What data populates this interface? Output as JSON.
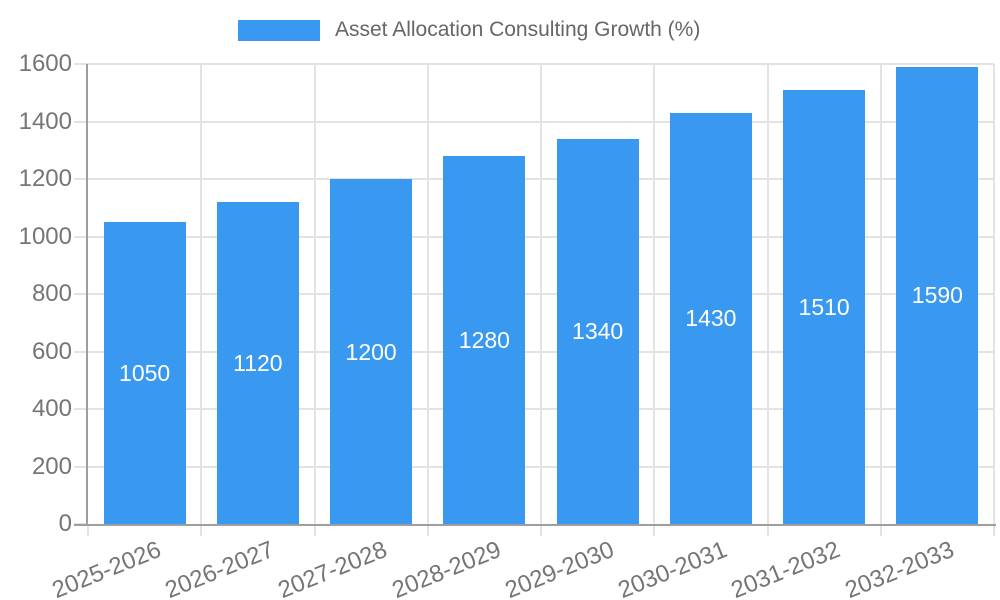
{
  "legend": {
    "label": "Asset Allocation Consulting Growth (%)"
  },
  "chart_data": {
    "type": "bar",
    "title": "Asset Allocation Consulting Growth (%)",
    "categories": [
      "2025-2026",
      "2026-2027",
      "2027-2028",
      "2028-2029",
      "2029-2030",
      "2030-2031",
      "2031-2032",
      "2032-2033"
    ],
    "values": [
      1050,
      1120,
      1200,
      1280,
      1340,
      1430,
      1510,
      1590
    ],
    "xlabel": "",
    "ylabel": "",
    "ylim": [
      0,
      1600
    ],
    "yticks": [
      0,
      200,
      400,
      600,
      800,
      1000,
      1200,
      1400,
      1600
    ],
    "grid": true,
    "legend_position": "top",
    "value_labels": "inside-center",
    "colors": {
      "bar": "#3999f0",
      "value_label": "#ffffff",
      "axis_line": "#9e9e9e",
      "gridline": "#e3e3e3",
      "tick_label": "#757575",
      "legend_text": "#666666",
      "background": "#ffffff"
    }
  }
}
